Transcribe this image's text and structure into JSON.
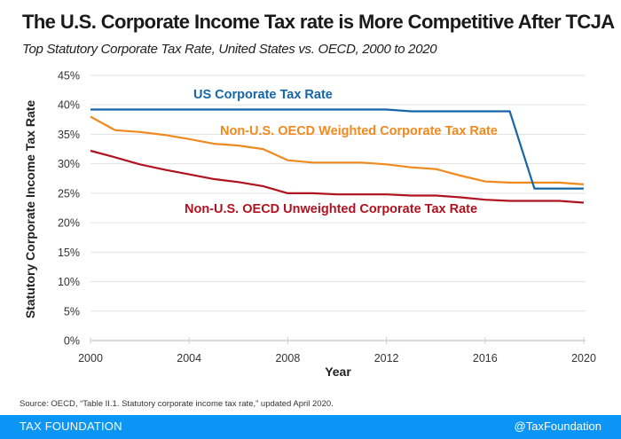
{
  "header": {
    "title": "The U.S. Corporate Income Tax rate is More Competitive After TCJA",
    "subtitle": "Top  Statutory Corporate Tax Rate, United States vs. OECD, 2000 to 2020"
  },
  "chart_data": {
    "type": "line",
    "title": "The U.S. Corporate Income Tax rate is More Competitive After TCJA",
    "subtitle": "Top  Statutory Corporate Tax Rate, United States vs. OECD, 2000 to 2020",
    "xlabel": "Year",
    "ylabel": "Statutory Corporate Income Tax Rate",
    "xlim": [
      2000,
      2020
    ],
    "ylim": [
      0,
      45
    ],
    "x_ticks": [
      2000,
      2004,
      2008,
      2012,
      2016,
      2020
    ],
    "x_tick_labels": [
      "2000",
      "2004",
      "2008",
      "2012",
      "2016",
      "2020"
    ],
    "y_ticks": [
      0,
      5,
      10,
      15,
      20,
      25,
      30,
      35,
      40,
      45
    ],
    "y_tick_labels": [
      "0%",
      "5%",
      "10%",
      "15%",
      "20%",
      "25%",
      "30%",
      "35%",
      "40%",
      "45%"
    ],
    "grid": true,
    "legend": "inline-labels",
    "x": [
      2000,
      2001,
      2002,
      2003,
      2004,
      2005,
      2006,
      2007,
      2008,
      2009,
      2010,
      2011,
      2012,
      2013,
      2014,
      2015,
      2016,
      2017,
      2018,
      2019,
      2020
    ],
    "series": [
      {
        "name": "US Corporate Tax Rate",
        "color": "#1565a8",
        "values": [
          39.2,
          39.2,
          39.2,
          39.2,
          39.2,
          39.2,
          39.2,
          39.2,
          39.2,
          39.2,
          39.2,
          39.2,
          39.2,
          38.9,
          38.9,
          38.9,
          38.9,
          38.9,
          25.8,
          25.8,
          25.8
        ]
      },
      {
        "name": "Non-U.S. OECD Weighted Corporate Tax Rate",
        "color": "#f0891e",
        "values": [
          38.0,
          35.7,
          35.4,
          34.9,
          34.2,
          33.4,
          33.1,
          32.5,
          30.6,
          30.2,
          30.2,
          30.2,
          29.9,
          29.4,
          29.1,
          28.0,
          27.0,
          26.8,
          26.8,
          26.8,
          26.5
        ]
      },
      {
        "name": "Non-U.S. OECD Unweighted Corporate Tax Rate",
        "color": "#b0121f",
        "values": [
          32.2,
          31.1,
          29.9,
          29.0,
          28.2,
          27.4,
          26.9,
          26.2,
          25.0,
          25.0,
          24.8,
          24.8,
          24.8,
          24.6,
          24.6,
          24.3,
          23.9,
          23.7,
          23.7,
          23.7,
          23.4
        ]
      }
    ]
  },
  "source": "Source: OECD, “Table II.1. Statutory corporate income tax rate,” updated April 2020.",
  "footer": {
    "brand": "TAX FOUNDATION",
    "handle": "@TaxFoundation",
    "color": "#0b96f5"
  }
}
